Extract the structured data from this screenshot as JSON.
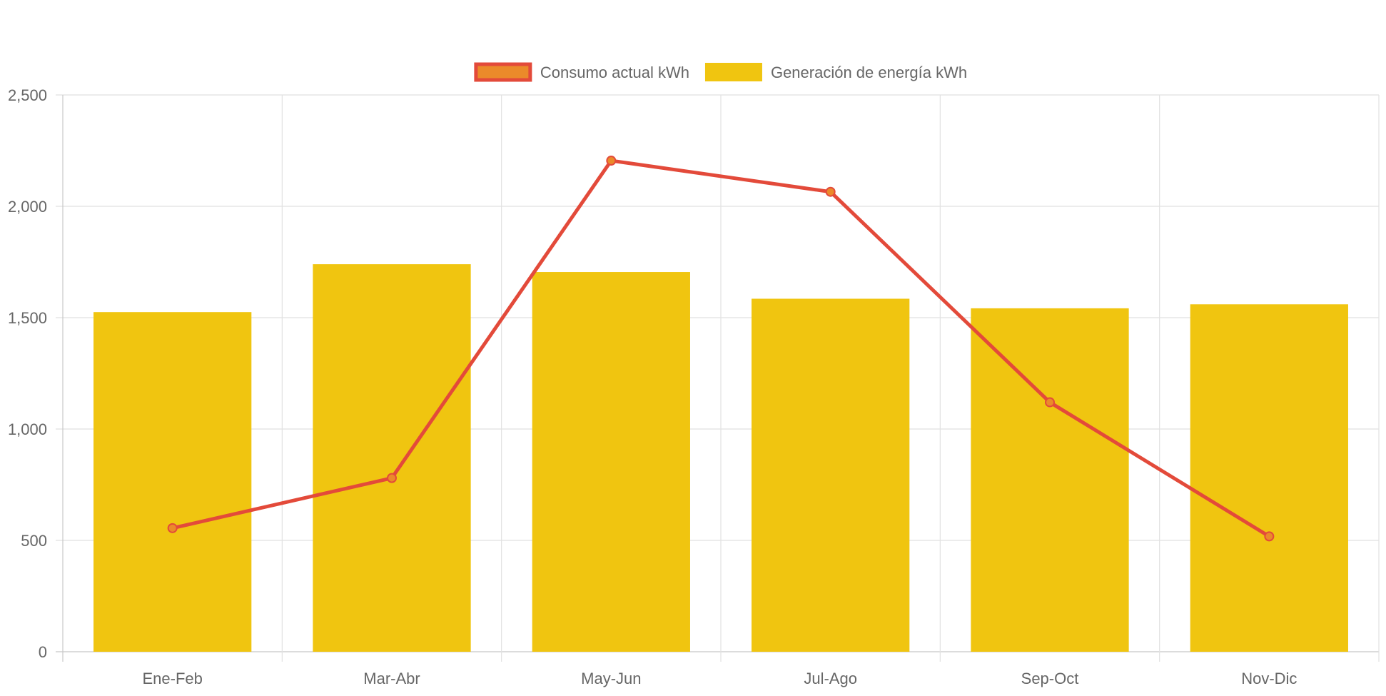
{
  "chart_data": {
    "type": "bar",
    "categories": [
      "Ene-Feb",
      "Mar-Abr",
      "May-Jun",
      "Jul-Ago",
      "Sep-Oct",
      "Nov-Dic"
    ],
    "series": [
      {
        "name": "Consumo actual kWh",
        "type": "line",
        "values": [
          555,
          780,
          2205,
          2065,
          1120,
          518
        ],
        "color": "#e34a3a",
        "point_color": "#eb8a2a"
      },
      {
        "name": "Generación de energía kWh",
        "type": "bar",
        "values": [
          1525,
          1740,
          1705,
          1585,
          1542,
          1560
        ],
        "color": "#f0c510"
      }
    ],
    "title": "",
    "xlabel": "",
    "ylabel": "",
    "ylim": [
      0,
      2500
    ],
    "yticks": [
      0,
      500,
      1000,
      1500,
      2000,
      2500
    ],
    "ytick_labels": [
      "0",
      "500",
      "1,000",
      "1,500",
      "2,000",
      "2,500"
    ],
    "grid": true,
    "legend": "top-center"
  }
}
